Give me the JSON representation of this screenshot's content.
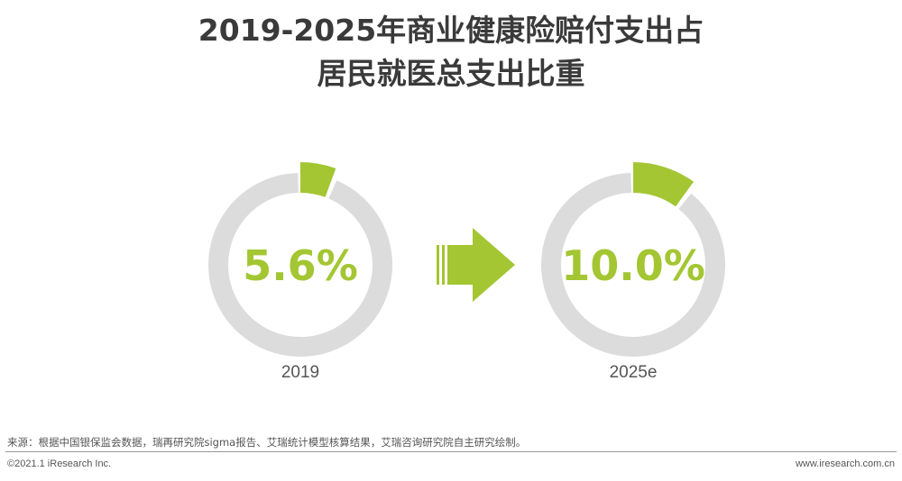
{
  "title": {
    "line1": "2019-2025年商业健康险赔付支出占",
    "line2": "居民就医总支出比重"
  },
  "chart_data": {
    "type": "pie",
    "variant": "donut",
    "title": "2019-2025年商业健康险赔付支出占居民就医总支出比重",
    "items": [
      {
        "label": "2019",
        "value": 5.6,
        "display": "5.6%"
      },
      {
        "label": "2025e",
        "value": 10.0,
        "display": "10.0%"
      }
    ],
    "unit": "%",
    "colors": {
      "highlight": "#a3c632",
      "ring": "#dcdcdc",
      "arrow": "#a3c632",
      "label": "#555555"
    }
  },
  "footer": {
    "source": "来源：根据中国银保监会数据，瑞再研究院sigma报告、艾瑞统计模型核算结果，艾瑞咨询研究院自主研究绘制。",
    "copyright": "©2021.1 iResearch Inc.",
    "website": "www.iresearch.com.cn"
  }
}
